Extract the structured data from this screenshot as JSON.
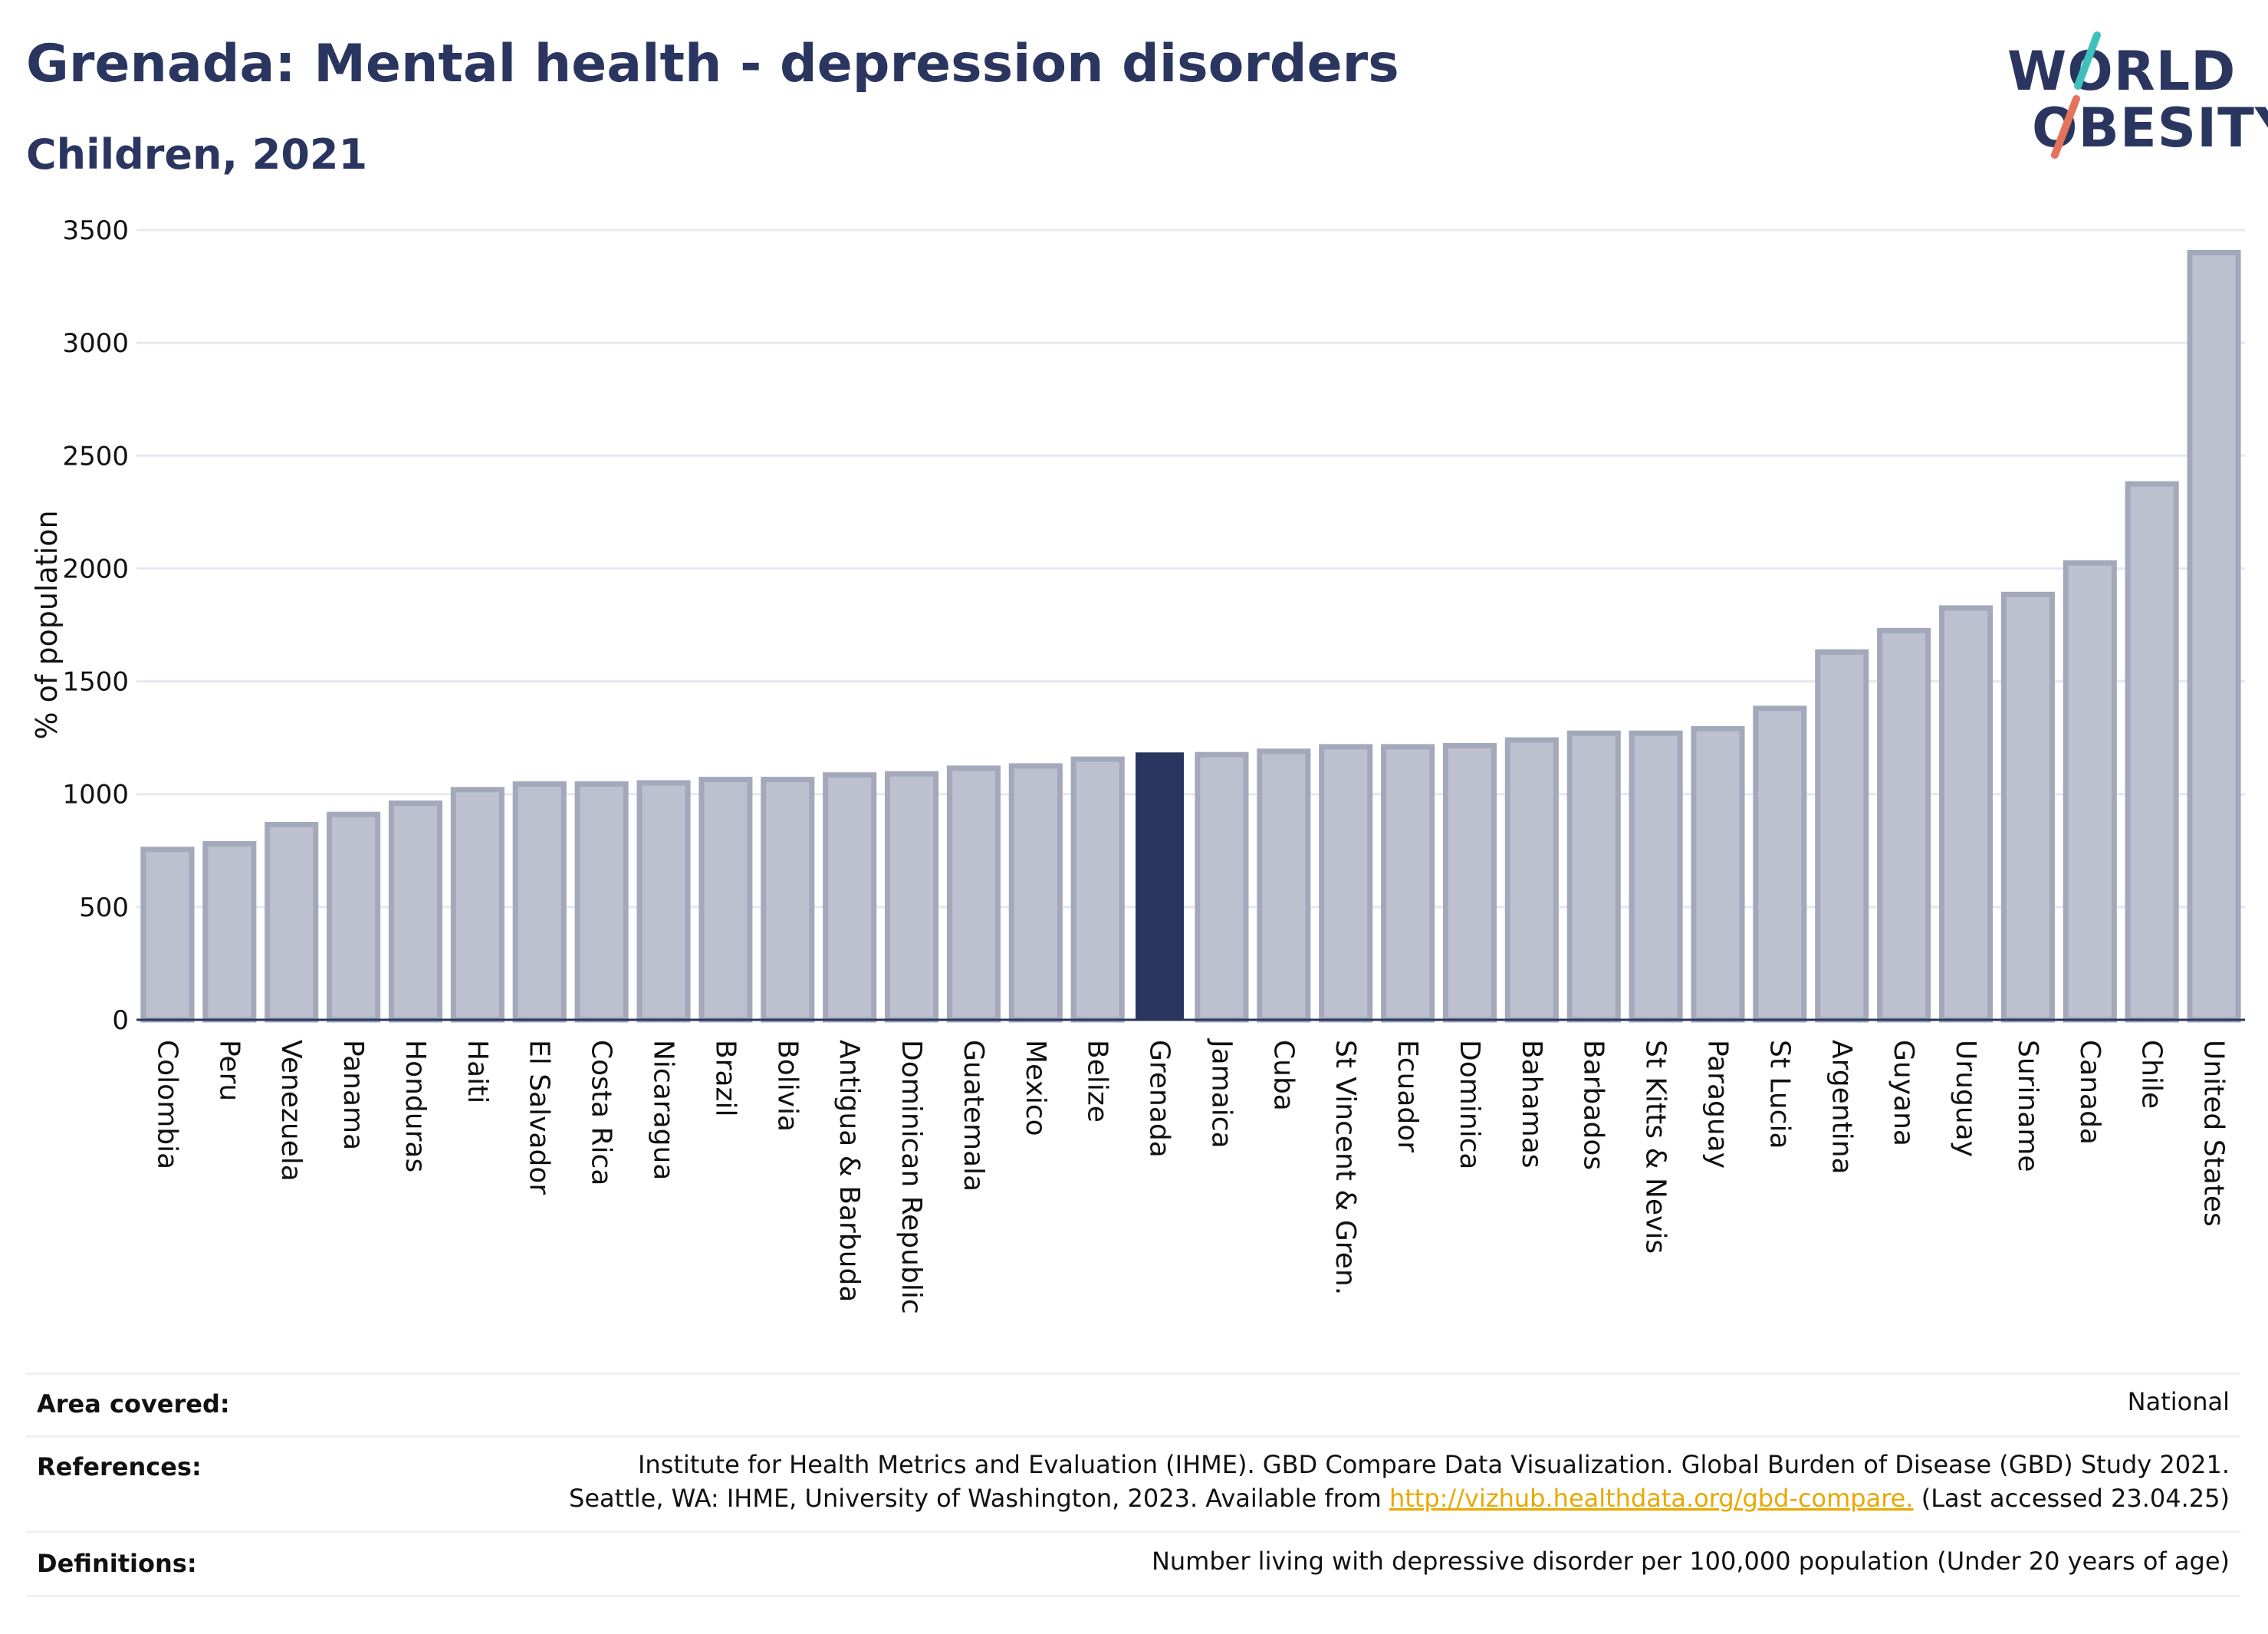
{
  "header": {
    "title": "Grenada: Mental health - depression disorders",
    "subtitle": "Children, 2021"
  },
  "logo": {
    "line1": "WORLD",
    "line2": "OBESITY"
  },
  "chart_data": {
    "type": "bar",
    "ylabel": "% of population",
    "xlabel": "",
    "ylim": [
      0,
      3500
    ],
    "yticks": [
      0,
      500,
      1000,
      1500,
      2000,
      2500,
      3000,
      3500
    ],
    "grid": true,
    "highlight": "Grenada",
    "highlight_color": "#2a3660",
    "bar_color": "#bdc1cf",
    "bar_edge_color": "#a3a8bb",
    "categories": [
      "Colombia",
      "Peru",
      "Venezuela",
      "Panama",
      "Honduras",
      "Haiti",
      "El Salvador",
      "Costa Rica",
      "Nicaragua",
      "Brazil",
      "Bolivia",
      "Antigua & Barbuda",
      "Dominican Republic",
      "Guatemala",
      "Mexico",
      "Belize",
      "Grenada",
      "Jamaica",
      "Cuba",
      "St Vincent & Gren.",
      "Ecuador",
      "Dominica",
      "Bahamas",
      "Barbados",
      "St Kitts & Nevis",
      "Paraguay",
      "St Lucia",
      "Argentina",
      "Guyana",
      "Uruguay",
      "Suriname",
      "Canada",
      "Chile",
      "United States"
    ],
    "values": [
      755,
      780,
      865,
      910,
      960,
      1020,
      1045,
      1045,
      1050,
      1065,
      1065,
      1085,
      1090,
      1115,
      1125,
      1155,
      1185,
      1175,
      1190,
      1210,
      1210,
      1215,
      1240,
      1270,
      1270,
      1290,
      1380,
      1630,
      1725,
      1825,
      1885,
      2025,
      2375,
      3400
    ]
  },
  "footer": {
    "area_label": "Area covered:",
    "area_value": "National",
    "references_label": "References:",
    "references_line1": "Institute for Health Metrics and Evaluation (IHME). GBD Compare Data Visualization. Global Burden of Disease (GBD) Study 2021.",
    "references_line2_pre": "Seattle, WA: IHME, University of Washington, 2023. Available from ",
    "references_link": "http://vizhub.healthdata.org/gbd-compare.",
    "references_line2_post": " (Last accessed 23.04.25)",
    "definitions_label": "Definitions:",
    "definitions_value": "Number living with depressive disorder per 100,000 population (Under 20 years of age)"
  }
}
